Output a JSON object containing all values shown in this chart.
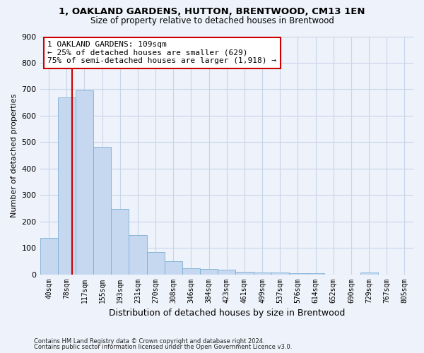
{
  "title1": "1, OAKLAND GARDENS, HUTTON, BRENTWOOD, CM13 1EN",
  "title2": "Size of property relative to detached houses in Brentwood",
  "xlabel": "Distribution of detached houses by size in Brentwood",
  "ylabel": "Number of detached properties",
  "categories": [
    "40sqm",
    "78sqm",
    "117sqm",
    "155sqm",
    "193sqm",
    "231sqm",
    "270sqm",
    "308sqm",
    "346sqm",
    "384sqm",
    "423sqm",
    "461sqm",
    "499sqm",
    "537sqm",
    "576sqm",
    "614sqm",
    "652sqm",
    "690sqm",
    "729sqm",
    "767sqm",
    "805sqm"
  ],
  "values": [
    138,
    668,
    695,
    483,
    247,
    148,
    85,
    50,
    24,
    19,
    18,
    10,
    8,
    6,
    5,
    5,
    0,
    0,
    8,
    0,
    0
  ],
  "bar_color": "#c5d8f0",
  "bar_edge_color": "#7bafd4",
  "annotation_text": "1 OAKLAND GARDENS: 109sqm\n← 25% of detached houses are smaller (629)\n75% of semi-detached houses are larger (1,918) →",
  "annotation_box_color": "#ffffff",
  "annotation_box_edge": "#cc0000",
  "vline_color": "#cc0000",
  "grid_color": "#c8d4e8",
  "footnote1": "Contains HM Land Registry data © Crown copyright and database right 2024.",
  "footnote2": "Contains public sector information licensed under the Open Government Licence v3.0.",
  "ylim": [
    0,
    900
  ],
  "yticks": [
    0,
    100,
    200,
    300,
    400,
    500,
    600,
    700,
    800,
    900
  ],
  "background_color": "#eef2fa",
  "vline_sqm": 109,
  "bin_edges_sqm": [
    40,
    78,
    117,
    155,
    193,
    231,
    270,
    308,
    346,
    384,
    423,
    461,
    499,
    537,
    576,
    614,
    652,
    690,
    729,
    767,
    805,
    843
  ]
}
